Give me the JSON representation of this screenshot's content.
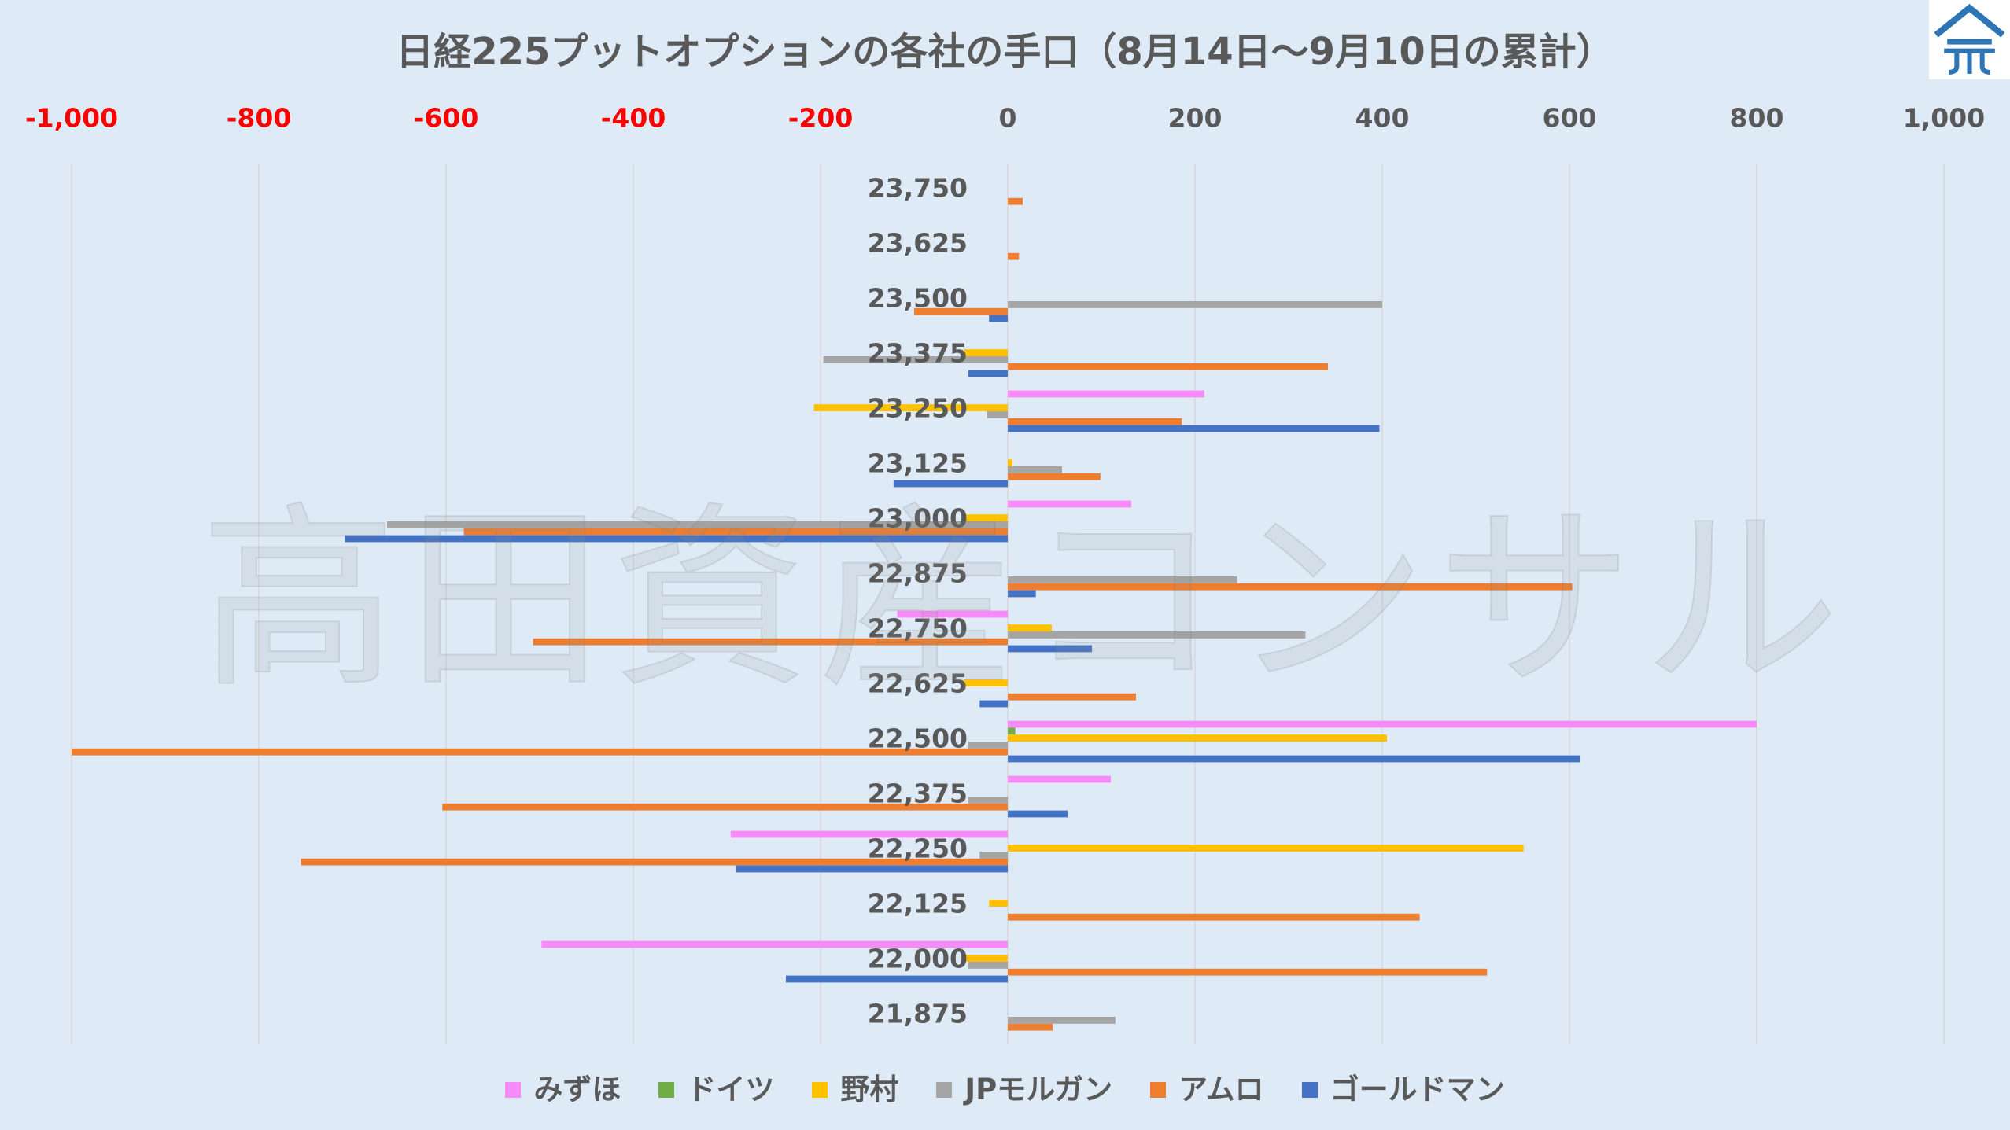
{
  "chart_data": {
    "type": "bar",
    "orientation": "horizontal",
    "title": "日経225プットオプションの各社の手口（8月14日～9月10日の累計）",
    "xlim": [
      -1000,
      1000
    ],
    "x_axis": {
      "position": "top",
      "label_color": "#595959",
      "negative_label_color": "#FF0000",
      "ticks": [
        {
          "value": -1000,
          "label": "-1,000"
        },
        {
          "value": -800,
          "label": "-800"
        },
        {
          "value": -600,
          "label": "-600"
        },
        {
          "value": -400,
          "label": "-400"
        },
        {
          "value": -200,
          "label": "-200"
        },
        {
          "value": 0,
          "label": "0"
        },
        {
          "value": 200,
          "label": "200"
        },
        {
          "value": 400,
          "label": "400"
        },
        {
          "value": 600,
          "label": "600"
        },
        {
          "value": 800,
          "label": "800"
        },
        {
          "value": 1000,
          "label": "1,000"
        }
      ]
    },
    "grid": true,
    "legend": "bottom",
    "categories": [
      "23,750",
      "23,625",
      "23,500",
      "23,375",
      "23,250",
      "23,125",
      "23,000",
      "22,875",
      "22,750",
      "22,625",
      "22,500",
      "22,375",
      "22,250",
      "22,125",
      "22,000",
      "21,875"
    ],
    "series": [
      {
        "name": "みずほ",
        "color": "#F68AF6",
        "values": [
          0,
          0,
          0,
          0,
          210,
          0,
          132,
          0,
          -118,
          0,
          800,
          110,
          -296,
          0,
          -498,
          0
        ]
      },
      {
        "name": "ドイツ",
        "color": "#70AD47",
        "values": [
          0,
          0,
          0,
          0,
          0,
          0,
          0,
          0,
          0,
          0,
          8,
          0,
          0,
          0,
          0,
          0
        ]
      },
      {
        "name": "野村",
        "color": "#FFC000",
        "values": [
          0,
          0,
          0,
          -47,
          -207,
          5,
          -45,
          0,
          47,
          -47,
          405,
          0,
          551,
          -20,
          -47,
          0
        ]
      },
      {
        "name": "JPモルガン",
        "color": "#A5A5A5",
        "values": [
          0,
          0,
          400,
          -197,
          -22,
          58,
          -663,
          245,
          318,
          0,
          -42,
          -42,
          -30,
          0,
          -42,
          115
        ]
      },
      {
        "name": "アムロ",
        "color": "#ED7D31",
        "values": [
          16,
          12,
          -100,
          342,
          186,
          99,
          -581,
          603,
          -507,
          137,
          -1000,
          -604,
          -755,
          440,
          512,
          48
        ]
      },
      {
        "name": "ゴールドマン",
        "color": "#4472C4",
        "values": [
          0,
          0,
          -20,
          -42,
          397,
          -122,
          -708,
          30,
          90,
          -30,
          611,
          64,
          -290,
          0,
          -237,
          0
        ]
      }
    ]
  },
  "watermark": {
    "text": "高田資産コンサル"
  },
  "logo": {
    "icon": "house-roof-logo-icon",
    "color": "#2E75B6"
  },
  "colors": {
    "background": "#DEEBF7",
    "text": "#595959",
    "gridline": "#D9D9D9"
  }
}
